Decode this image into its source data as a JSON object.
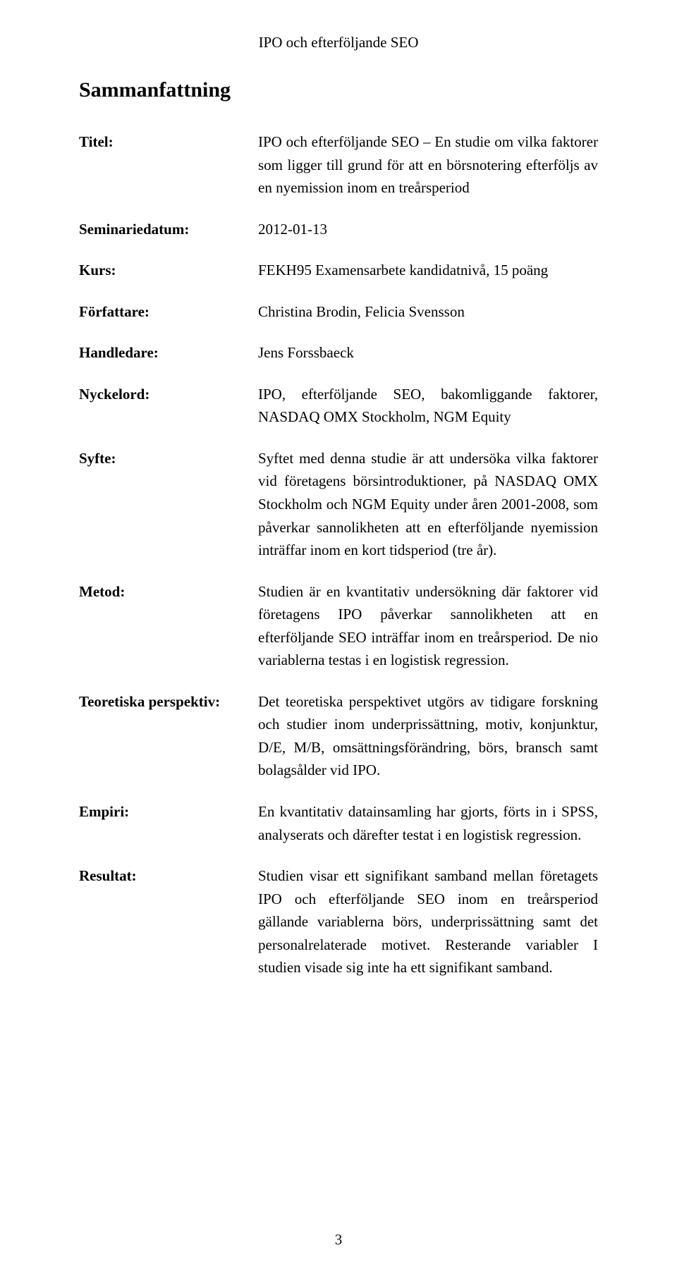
{
  "colors": {
    "background": "#ffffff",
    "text": "#000000"
  },
  "header": "IPO och efterföljande SEO",
  "title": "Sammanfattning",
  "rows": [
    {
      "label": "Titel:",
      "value": "IPO och efterföljande SEO – En studie om vilka faktorer som ligger till grund för att en börsnotering efterföljs av en nyemission inom en treårsperiod"
    },
    {
      "label": "Seminariedatum:",
      "value": "2012-01-13"
    },
    {
      "label": "Kurs:",
      "value": "FEKH95 Examensarbete kandidatnivå, 15 poäng"
    },
    {
      "label": "Författare:",
      "value": "Christina Brodin, Felicia Svensson"
    },
    {
      "label": "Handledare:",
      "value": "Jens Forssbaeck"
    },
    {
      "label": "Nyckelord:",
      "value": "IPO, efterföljande SEO, bakomliggande faktorer, NASDAQ OMX Stockholm, NGM Equity"
    },
    {
      "label": "Syfte:",
      "value": "Syftet med denna studie är att undersöka vilka faktorer vid företagens börsintroduktioner, på NASDAQ OMX Stockholm och NGM Equity under åren 2001-2008, som påverkar sannolikheten att en efterföljande nyemission inträffar inom en kort tidsperiod (tre år)."
    },
    {
      "label": "Metod:",
      "value": "Studien är en kvantitativ undersökning där faktorer vid företagens IPO påverkar sannolikheten att en efterföljande SEO inträffar inom en treårsperiod. De nio variablerna testas i en logistisk regression."
    },
    {
      "label": "Teoretiska perspektiv:",
      "value": "Det teoretiska perspektivet utgörs av tidigare forskning och studier inom underprissättning, motiv, konjunktur, D/E, M/B, omsättningsförändring, börs, bransch samt bolagsålder vid IPO."
    },
    {
      "label": "Empiri:",
      "value": "En kvantitativ datainsamling har gjorts, förts in i SPSS, analyserats och därefter testat i en logistisk regression."
    },
    {
      "label": "Resultat:",
      "value": "Studien visar ett signifikant samband mellan företagets IPO och efterföljande SEO inom en treårsperiod gällande variablerna börs, underprissättning samt det personalrelaterade motivet. Resterande variabler I studien visade sig inte ha ett signifikant samband."
    }
  ],
  "page_number": "3"
}
